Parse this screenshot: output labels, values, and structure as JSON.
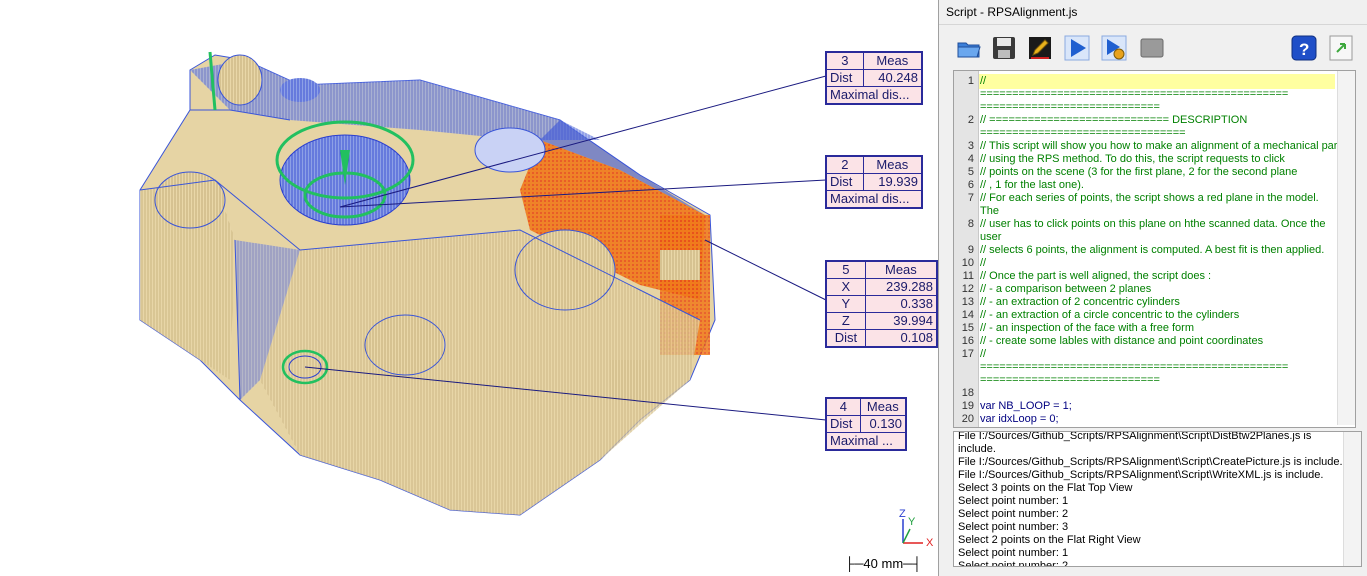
{
  "viewport": {
    "scale_label": "40 mm",
    "axis_z": "Z",
    "axis_y": "Y",
    "axis_x": "X",
    "labels": [
      {
        "id": "3",
        "kind": "Meas",
        "dist_label": "Dist",
        "dist": "40.248",
        "extra": "Maximal dis..."
      },
      {
        "id": "2",
        "kind": "Meas",
        "dist_label": "Dist",
        "dist": "19.939",
        "extra": "Maximal dis..."
      },
      {
        "id": "5",
        "kind": "Meas",
        "x_label": "X",
        "x": "239.288",
        "y_label": "Y",
        "y": "0.338",
        "z_label": "Z",
        "z": "39.994",
        "dist_label": "Dist",
        "dist": "0.108"
      },
      {
        "id": "4",
        "kind": "Meas",
        "dist_label": "Dist",
        "dist": "0.130",
        "extra": "Maximal ..."
      }
    ]
  },
  "panel": {
    "title": "Script - RPSAlignment.js",
    "toolbar": {
      "open_icon": "folder-open-icon",
      "save_icon": "floppy-save-icon",
      "edit_icon": "edit-pencil-icon",
      "run_icon": "play-icon",
      "debug_icon": "debug-run-icon",
      "stop_icon": "stop-icon",
      "help_icon": "help-icon",
      "export_icon": "export-icon"
    },
    "editor": {
      "lines": [
        {
          "n": "1",
          "text": "//"
        },
        {
          "n": "",
          "text": "================================================"
        },
        {
          "n": "",
          "text": "============================"
        },
        {
          "n": "2",
          "text": "// ============================ DESCRIPTION"
        },
        {
          "n": "",
          "text": "================================"
        },
        {
          "n": "3",
          "text": "// This script will show you how to make an alignment of a mechanical part"
        },
        {
          "n": "4",
          "text": "// using the RPS method. To do this, the script requests to click"
        },
        {
          "n": "5",
          "text": "// points on the scene (3 for the first plane, 2 for the second plane"
        },
        {
          "n": "6",
          "text": "// , 1 for the last one)."
        },
        {
          "n": "7",
          "text": "// For each series of points, the script shows a red plane in the model."
        },
        {
          "n": "",
          "text": "The"
        },
        {
          "n": "8",
          "text": "// user has to click points on this plane on hthe scanned data. Once the"
        },
        {
          "n": "",
          "text": "user"
        },
        {
          "n": "9",
          "text": "// selects 6 points, the alignment is computed. A best fit is then applied."
        },
        {
          "n": "10",
          "text": "//"
        },
        {
          "n": "11",
          "text": "// Once the part is well aligned, the script does :"
        },
        {
          "n": "12",
          "text": "// - a comparison between 2 planes"
        },
        {
          "n": "13",
          "text": "// - an extraction of 2 concentric cylinders"
        },
        {
          "n": "14",
          "text": "// - an extraction of a circle concentric to the cylinders"
        },
        {
          "n": "15",
          "text": "// - an inspection of the face with a free form"
        },
        {
          "n": "16",
          "text": "// - create some lables with distance and point coordinates"
        },
        {
          "n": "17",
          "text": "//"
        },
        {
          "n": "",
          "text": "================================================"
        },
        {
          "n": "",
          "text": "============================"
        },
        {
          "n": "18",
          "text": ""
        },
        {
          "n": "19",
          "text": "var NB_LOOP = 1;"
        },
        {
          "n": "20",
          "text": "var idxLoop = 0;"
        }
      ]
    },
    "console": {
      "lines": [
        "File I:/Sources/Github_Scripts/RPSAlignment\\Script\\DistBtw2Planes.js is",
        "include.",
        "File I:/Sources/Github_Scripts/RPSAlignment\\Script\\CreatePicture.js is include.",
        "File I:/Sources/Github_Scripts/RPSAlignment\\Script\\WriteXML.js is include.",
        "Select 3 points on the Flat Top View",
        "Select point number: 1",
        "Select point number: 2",
        "Select point number: 3",
        "Select 2 points on the Flat Right View",
        "Select point number: 1",
        "Select point number: 2"
      ]
    }
  }
}
